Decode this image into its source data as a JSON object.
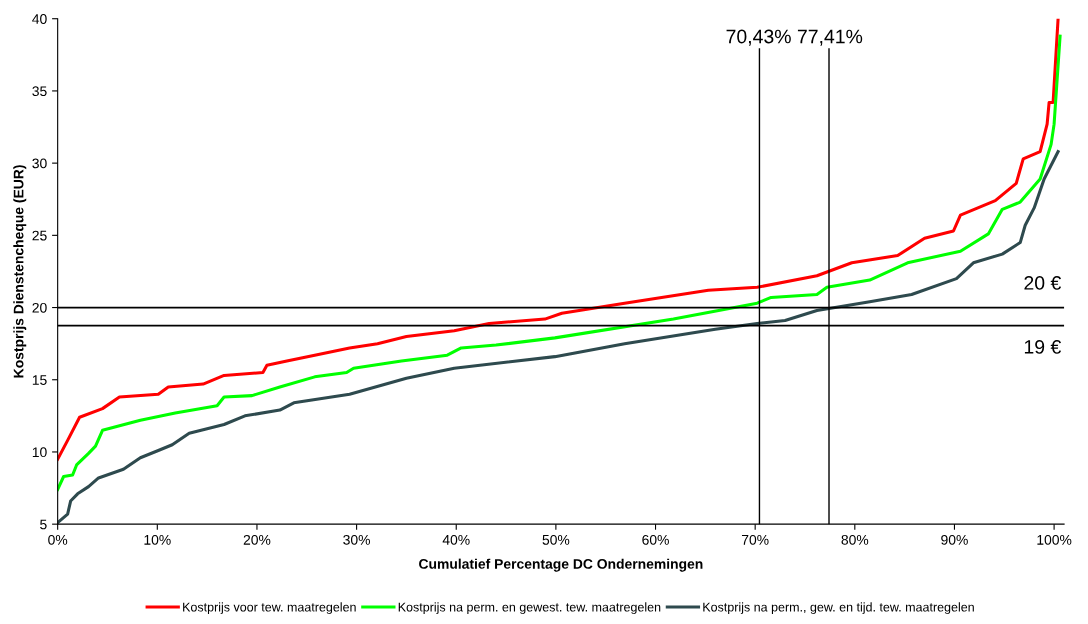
{
  "chart_data": {
    "type": "line",
    "xlabel": "Cumulatief Percentage DC Ondernemingen",
    "ylabel": "Kostprijs Dienstencheque (EUR)",
    "xlim": [
      0,
      101
    ],
    "ylim": [
      5,
      40
    ],
    "xticks": [
      {
        "value": 0,
        "label": "0%"
      },
      {
        "value": 10,
        "label": "10%"
      },
      {
        "value": 20,
        "label": "20%"
      },
      {
        "value": 30,
        "label": "30%"
      },
      {
        "value": 40,
        "label": "40%"
      },
      {
        "value": 50,
        "label": "50%"
      },
      {
        "value": 60,
        "label": "60%"
      },
      {
        "value": 70,
        "label": "70%"
      },
      {
        "value": 80,
        "label": "80%"
      },
      {
        "value": 90,
        "label": "90%"
      },
      {
        "value": 100,
        "label": "100%"
      }
    ],
    "yticks": [
      5,
      10,
      15,
      20,
      25,
      30,
      35,
      40
    ],
    "grid": false,
    "legend": "bottom",
    "marker": "none",
    "line_style": "solid",
    "series": [
      {
        "name": "Kostprijs voor tew. maatregelen",
        "color": "#ff0000",
        "x": [
          0,
          1.0,
          2.2,
          4.5,
          6.2,
          10.1,
          11.1,
          14.6,
          16.7,
          20.6,
          21,
          23,
          25.8,
          29.3,
          32.1,
          35,
          39.8,
          43.3,
          48.9,
          50.6,
          56.9,
          65.3,
          70.2,
          76.2,
          79.7,
          84.3,
          87.0,
          89.9,
          90.6,
          94.1,
          96.2,
          96.9,
          98.6,
          99.3,
          99.5,
          99.9,
          100.4
        ],
        "values": [
          9.5,
          10.8,
          12.4,
          13.0,
          13.8,
          14.0,
          14.5,
          14.7,
          15.3,
          15.5,
          16.0,
          16.3,
          16.7,
          17.2,
          17.5,
          18.0,
          18.4,
          18.9,
          19.2,
          19.6,
          20.3,
          21.2,
          21.4,
          22.2,
          23.1,
          23.6,
          24.8,
          25.3,
          26.4,
          27.4,
          28.6,
          30.3,
          30.8,
          32.7,
          34.2,
          34.2,
          40.0
        ]
      },
      {
        "name": "Kostprijs na perm. en gewest. tew. maatregelen",
        "color": "#00ff00",
        "x": [
          0,
          0.6,
          1.5,
          1.9,
          3.1,
          3.8,
          4.5,
          8.3,
          11.8,
          16.0,
          16.7,
          19.5,
          22.3,
          25.8,
          29.0,
          29.7,
          34.5,
          39.1,
          40.5,
          44.0,
          49.9,
          61.8,
          70.2,
          71.6,
          76.2,
          77.2,
          81.5,
          85.3,
          90.6,
          93.4,
          94.8,
          96.6,
          98.6,
          99.7,
          100.0,
          100.6
        ],
        "values": [
          7.4,
          8.3,
          8.4,
          9.1,
          9.9,
          10.4,
          11.5,
          12.2,
          12.7,
          13.2,
          13.8,
          13.9,
          14.5,
          15.2,
          15.5,
          15.8,
          16.3,
          16.7,
          17.2,
          17.4,
          17.9,
          19.2,
          20.3,
          20.7,
          20.9,
          21.4,
          21.9,
          23.1,
          23.9,
          25.1,
          26.8,
          27.3,
          28.9,
          31.3,
          32.7,
          38.8
        ]
      },
      {
        "name": "Kostprijs na perm., gew. en tijd. tew. maatregelen",
        "color": "#2e4a4e",
        "x": [
          0,
          1.0,
          1.3,
          2.0,
          3.1,
          4.1,
          6.6,
          8.3,
          10.1,
          11.5,
          13.2,
          16.7,
          18.8,
          22.3,
          23.7,
          29.3,
          35.0,
          39.8,
          49.9,
          56.9,
          66.0,
          70.2,
          73.0,
          76.2,
          81.5,
          85.7,
          90.2,
          91.9,
          94.8,
          96.6,
          97.1,
          98.0,
          99.0,
          100.4
        ],
        "values": [
          5.1,
          5.7,
          6.6,
          7.1,
          7.6,
          8.2,
          8.8,
          9.6,
          10.1,
          10.5,
          11.3,
          11.9,
          12.5,
          12.9,
          13.4,
          14.0,
          15.1,
          15.8,
          16.6,
          17.5,
          18.5,
          18.9,
          19.1,
          19.8,
          20.4,
          20.9,
          22.0,
          23.1,
          23.7,
          24.5,
          25.7,
          26.9,
          28.9,
          30.8
        ]
      }
    ],
    "ref_lines": [
      {
        "axis": "x",
        "value": 70.43,
        "label": "70,43%",
        "color": "#000000"
      },
      {
        "axis": "x",
        "value": 77.41,
        "label": "77,41%",
        "color": "#000000"
      },
      {
        "axis": "y",
        "value": 20,
        "label": "20 €",
        "color": "#000000"
      },
      {
        "axis": "y",
        "value": 18.75,
        "label": "19 €",
        "color": "#000000"
      }
    ]
  }
}
